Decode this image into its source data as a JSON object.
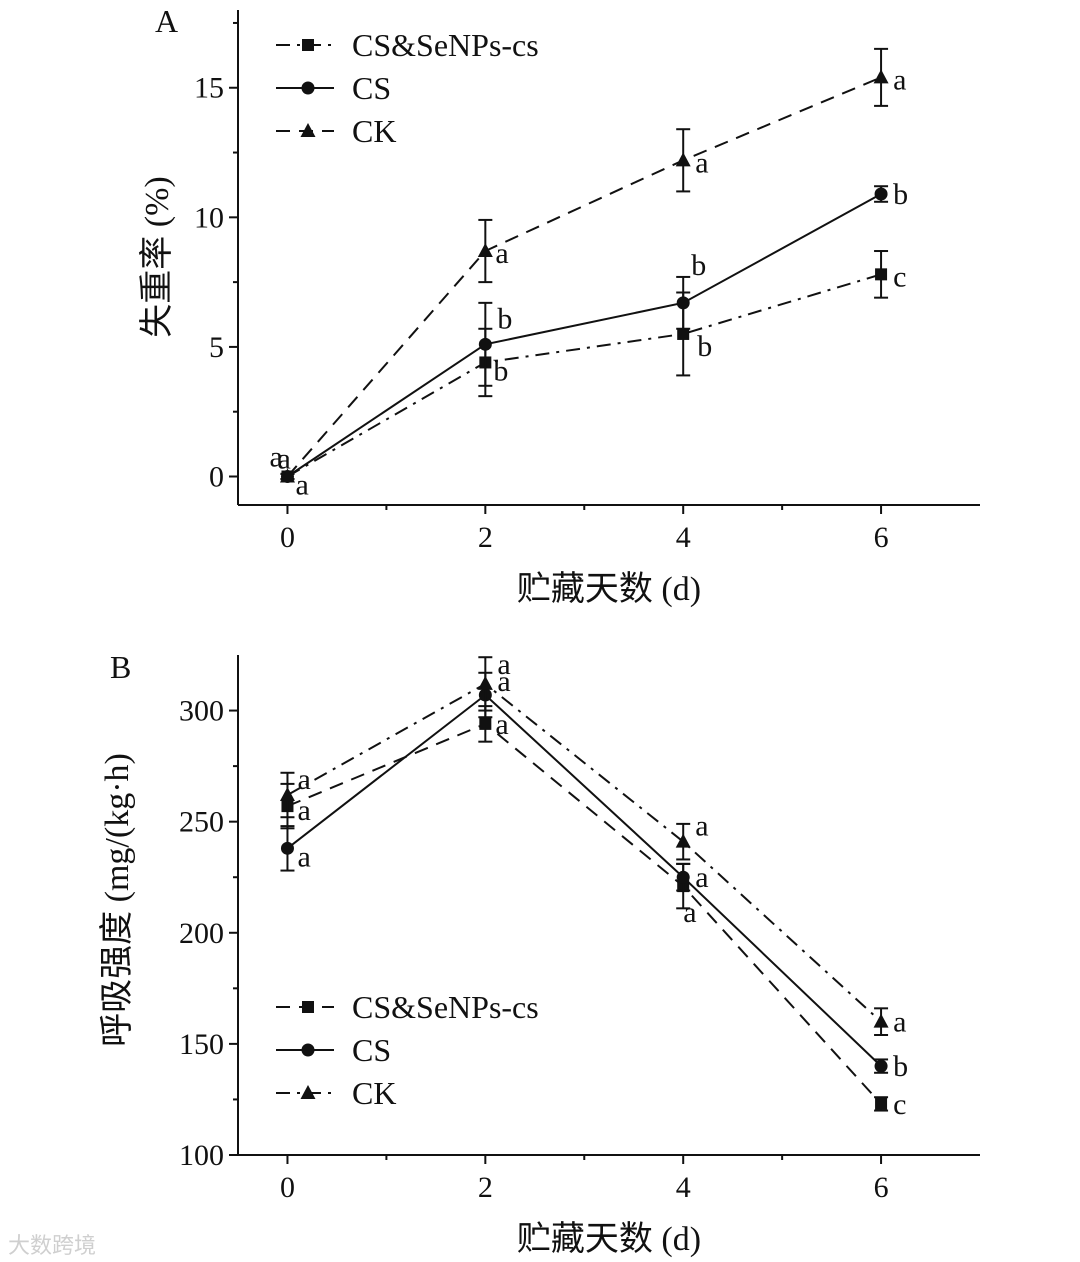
{
  "watermark": "大数跨境",
  "chart_data": [
    {
      "panel": "A",
      "type": "line",
      "xlabel": "贮藏天数 (d)",
      "ylabel": "失重率 (%)",
      "x": [
        0,
        2,
        4,
        6
      ],
      "xticks": [
        "0",
        "2",
        "4",
        "6"
      ],
      "yticks": [
        "0",
        "5",
        "10",
        "15"
      ],
      "xlim": [
        -0.5,
        7
      ],
      "ylim": [
        -1.1,
        18
      ],
      "legend_position": "top-left",
      "series": [
        {
          "name": "CS&SeNPs-cs",
          "marker": "square",
          "line": "dash-dot",
          "values": [
            0,
            4.4,
            5.5,
            7.8
          ],
          "errors": [
            0.1,
            1.3,
            1.6,
            0.9
          ],
          "labels": [
            "a",
            "b",
            "b",
            "c"
          ]
        },
        {
          "name": "CS",
          "marker": "circle",
          "line": "solid",
          "values": [
            0,
            5.1,
            6.7,
            10.9
          ],
          "errors": [
            0.1,
            1.6,
            1.0,
            0.3
          ],
          "labels": [
            "a",
            "b",
            "b",
            "b"
          ]
        },
        {
          "name": "CK",
          "marker": "triangle",
          "line": "dash",
          "values": [
            0,
            8.7,
            12.2,
            15.4
          ],
          "errors": [
            0.1,
            1.2,
            1.2,
            1.1
          ],
          "labels": [
            "a",
            "a",
            "a",
            "a"
          ]
        }
      ]
    },
    {
      "panel": "B",
      "type": "line",
      "xlabel": "贮藏天数 (d)",
      "ylabel": "呼吸强度 (mg/(kg·h)",
      "x": [
        0,
        2,
        4,
        6
      ],
      "xticks": [
        "0",
        "2",
        "4",
        "6"
      ],
      "yticks": [
        "100",
        "150",
        "200",
        "250",
        "300"
      ],
      "xlim": [
        -0.5,
        7
      ],
      "ylim": [
        100,
        325
      ],
      "legend_position": "bottom-left",
      "series": [
        {
          "name": "CS&SeNPs-cs",
          "marker": "square",
          "line": "dash",
          "values": [
            257,
            294,
            221,
            123
          ],
          "errors": [
            10,
            8,
            10,
            3
          ],
          "labels": [
            "a",
            "a",
            "a",
            "c"
          ]
        },
        {
          "name": "CS",
          "marker": "circle",
          "line": "solid",
          "values": [
            238,
            307,
            225,
            140
          ],
          "errors": [
            10,
            10,
            6,
            3
          ],
          "labels": [
            "a",
            "a",
            "a",
            "b"
          ]
        },
        {
          "name": "CK",
          "marker": "triangle",
          "line": "dash-dot",
          "values": [
            262,
            312,
            241,
            160
          ],
          "errors": [
            10,
            12,
            8,
            6
          ],
          "labels": [
            "a",
            "a",
            "a",
            "a"
          ]
        }
      ]
    }
  ]
}
